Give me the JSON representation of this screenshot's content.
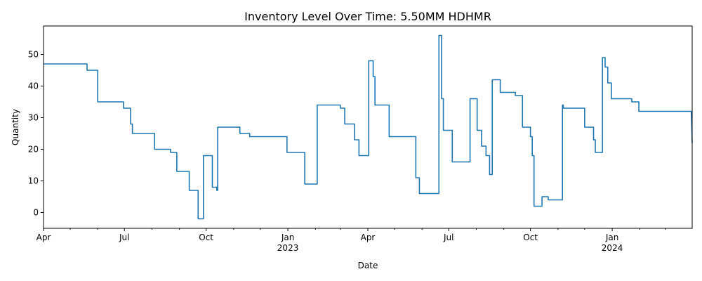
{
  "chart_data": {
    "type": "line",
    "title": "Inventory Level Over Time: 5.50MM HDHMR",
    "xlabel": "Date",
    "ylabel": "Quantity",
    "xlim": [
      "2022-04-01",
      "2024-03-31"
    ],
    "ylim": [
      -5,
      59
    ],
    "grid": false,
    "line_color": "#1f77b4",
    "y_ticks": [
      0,
      10,
      20,
      30,
      40,
      50
    ],
    "x_major_ticks": [
      {
        "date": "2022-04-01",
        "label": "Apr",
        "sublabel": ""
      },
      {
        "date": "2022-07-01",
        "label": "Jul",
        "sublabel": ""
      },
      {
        "date": "2022-10-01",
        "label": "Oct",
        "sublabel": ""
      },
      {
        "date": "2023-01-01",
        "label": "Jan",
        "sublabel": "2023"
      },
      {
        "date": "2023-04-01",
        "label": "Apr",
        "sublabel": ""
      },
      {
        "date": "2023-07-01",
        "label": "Jul",
        "sublabel": ""
      },
      {
        "date": "2023-10-01",
        "label": "Oct",
        "sublabel": ""
      },
      {
        "date": "2024-01-01",
        "label": "Jan",
        "sublabel": "2024"
      }
    ],
    "x_minor_ticks": [
      "2022-05-01",
      "2022-06-01",
      "2022-08-01",
      "2022-09-01",
      "2022-11-01",
      "2022-12-01",
      "2023-02-01",
      "2023-03-01",
      "2023-05-01",
      "2023-06-01",
      "2023-08-01",
      "2023-09-01",
      "2023-11-01",
      "2023-12-01",
      "2024-02-01",
      "2024-03-01"
    ],
    "series": [
      {
        "points": [
          [
            "2022-04-01",
            47
          ],
          [
            "2022-05-20",
            47
          ],
          [
            "2022-05-20",
            45
          ],
          [
            "2022-06-01",
            45
          ],
          [
            "2022-06-01",
            35
          ],
          [
            "2022-06-30",
            35
          ],
          [
            "2022-06-30",
            33
          ],
          [
            "2022-07-08",
            33
          ],
          [
            "2022-07-08",
            28
          ],
          [
            "2022-07-10",
            28
          ],
          [
            "2022-07-10",
            25
          ],
          [
            "2022-08-04",
            25
          ],
          [
            "2022-08-04",
            20
          ],
          [
            "2022-08-22",
            20
          ],
          [
            "2022-08-22",
            19
          ],
          [
            "2022-08-29",
            19
          ],
          [
            "2022-08-29",
            13
          ],
          [
            "2022-09-12",
            13
          ],
          [
            "2022-09-12",
            7
          ],
          [
            "2022-09-22",
            7
          ],
          [
            "2022-09-22",
            -2
          ],
          [
            "2022-09-28",
            -2
          ],
          [
            "2022-09-28",
            18
          ],
          [
            "2022-10-08",
            18
          ],
          [
            "2022-10-08",
            8
          ],
          [
            "2022-10-13",
            8
          ],
          [
            "2022-10-13",
            7
          ],
          [
            "2022-10-14",
            7
          ],
          [
            "2022-10-14",
            27
          ],
          [
            "2022-11-08",
            27
          ],
          [
            "2022-11-08",
            25
          ],
          [
            "2022-11-19",
            25
          ],
          [
            "2022-11-19",
            24
          ],
          [
            "2022-12-31",
            24
          ],
          [
            "2022-12-31",
            19
          ],
          [
            "2023-01-20",
            19
          ],
          [
            "2023-01-20",
            9
          ],
          [
            "2023-02-03",
            9
          ],
          [
            "2023-02-03",
            34
          ],
          [
            "2023-03-01",
            34
          ],
          [
            "2023-03-01",
            33
          ],
          [
            "2023-03-06",
            33
          ],
          [
            "2023-03-06",
            28
          ],
          [
            "2023-03-17",
            28
          ],
          [
            "2023-03-17",
            23
          ],
          [
            "2023-03-22",
            23
          ],
          [
            "2023-03-22",
            18
          ],
          [
            "2023-04-02",
            18
          ],
          [
            "2023-04-02",
            48
          ],
          [
            "2023-04-07",
            48
          ],
          [
            "2023-04-07",
            43
          ],
          [
            "2023-04-09",
            43
          ],
          [
            "2023-04-09",
            34
          ],
          [
            "2023-04-25",
            34
          ],
          [
            "2023-04-25",
            24
          ],
          [
            "2023-05-25",
            24
          ],
          [
            "2023-05-25",
            11
          ],
          [
            "2023-05-29",
            11
          ],
          [
            "2023-05-29",
            6
          ],
          [
            "2023-06-20",
            6
          ],
          [
            "2023-06-20",
            56
          ],
          [
            "2023-06-23",
            56
          ],
          [
            "2023-06-23",
            36
          ],
          [
            "2023-06-25",
            36
          ],
          [
            "2023-06-25",
            26
          ],
          [
            "2023-07-05",
            26
          ],
          [
            "2023-07-05",
            16
          ],
          [
            "2023-07-25",
            16
          ],
          [
            "2023-07-25",
            36
          ],
          [
            "2023-08-02",
            36
          ],
          [
            "2023-08-02",
            26
          ],
          [
            "2023-08-07",
            26
          ],
          [
            "2023-08-07",
            21
          ],
          [
            "2023-08-12",
            21
          ],
          [
            "2023-08-12",
            18
          ],
          [
            "2023-08-16",
            18
          ],
          [
            "2023-08-16",
            12
          ],
          [
            "2023-08-19",
            12
          ],
          [
            "2023-08-19",
            42
          ],
          [
            "2023-08-28",
            42
          ],
          [
            "2023-08-28",
            38
          ],
          [
            "2023-09-14",
            38
          ],
          [
            "2023-09-14",
            37
          ],
          [
            "2023-09-22",
            37
          ],
          [
            "2023-09-22",
            27
          ],
          [
            "2023-10-01",
            27
          ],
          [
            "2023-10-01",
            24
          ],
          [
            "2023-10-03",
            24
          ],
          [
            "2023-10-03",
            18
          ],
          [
            "2023-10-05",
            18
          ],
          [
            "2023-10-05",
            2
          ],
          [
            "2023-10-14",
            2
          ],
          [
            "2023-10-14",
            5
          ],
          [
            "2023-10-21",
            5
          ],
          [
            "2023-10-21",
            4
          ],
          [
            "2023-11-06",
            4
          ],
          [
            "2023-11-06",
            34
          ],
          [
            "2023-11-07",
            34
          ],
          [
            "2023-11-07",
            33
          ],
          [
            "2023-12-01",
            33
          ],
          [
            "2023-12-01",
            27
          ],
          [
            "2023-12-11",
            27
          ],
          [
            "2023-12-11",
            23
          ],
          [
            "2023-12-13",
            23
          ],
          [
            "2023-12-13",
            19
          ],
          [
            "2023-12-21",
            19
          ],
          [
            "2023-12-21",
            49
          ],
          [
            "2023-12-24",
            49
          ],
          [
            "2023-12-24",
            46
          ],
          [
            "2023-12-27",
            46
          ],
          [
            "2023-12-27",
            41
          ],
          [
            "2023-12-31",
            41
          ],
          [
            "2023-12-31",
            36
          ],
          [
            "2024-01-23",
            36
          ],
          [
            "2024-01-23",
            35
          ],
          [
            "2024-01-31",
            35
          ],
          [
            "2024-01-31",
            32
          ],
          [
            "2024-03-30",
            32
          ],
          [
            "2024-03-31",
            22
          ]
        ]
      }
    ]
  }
}
